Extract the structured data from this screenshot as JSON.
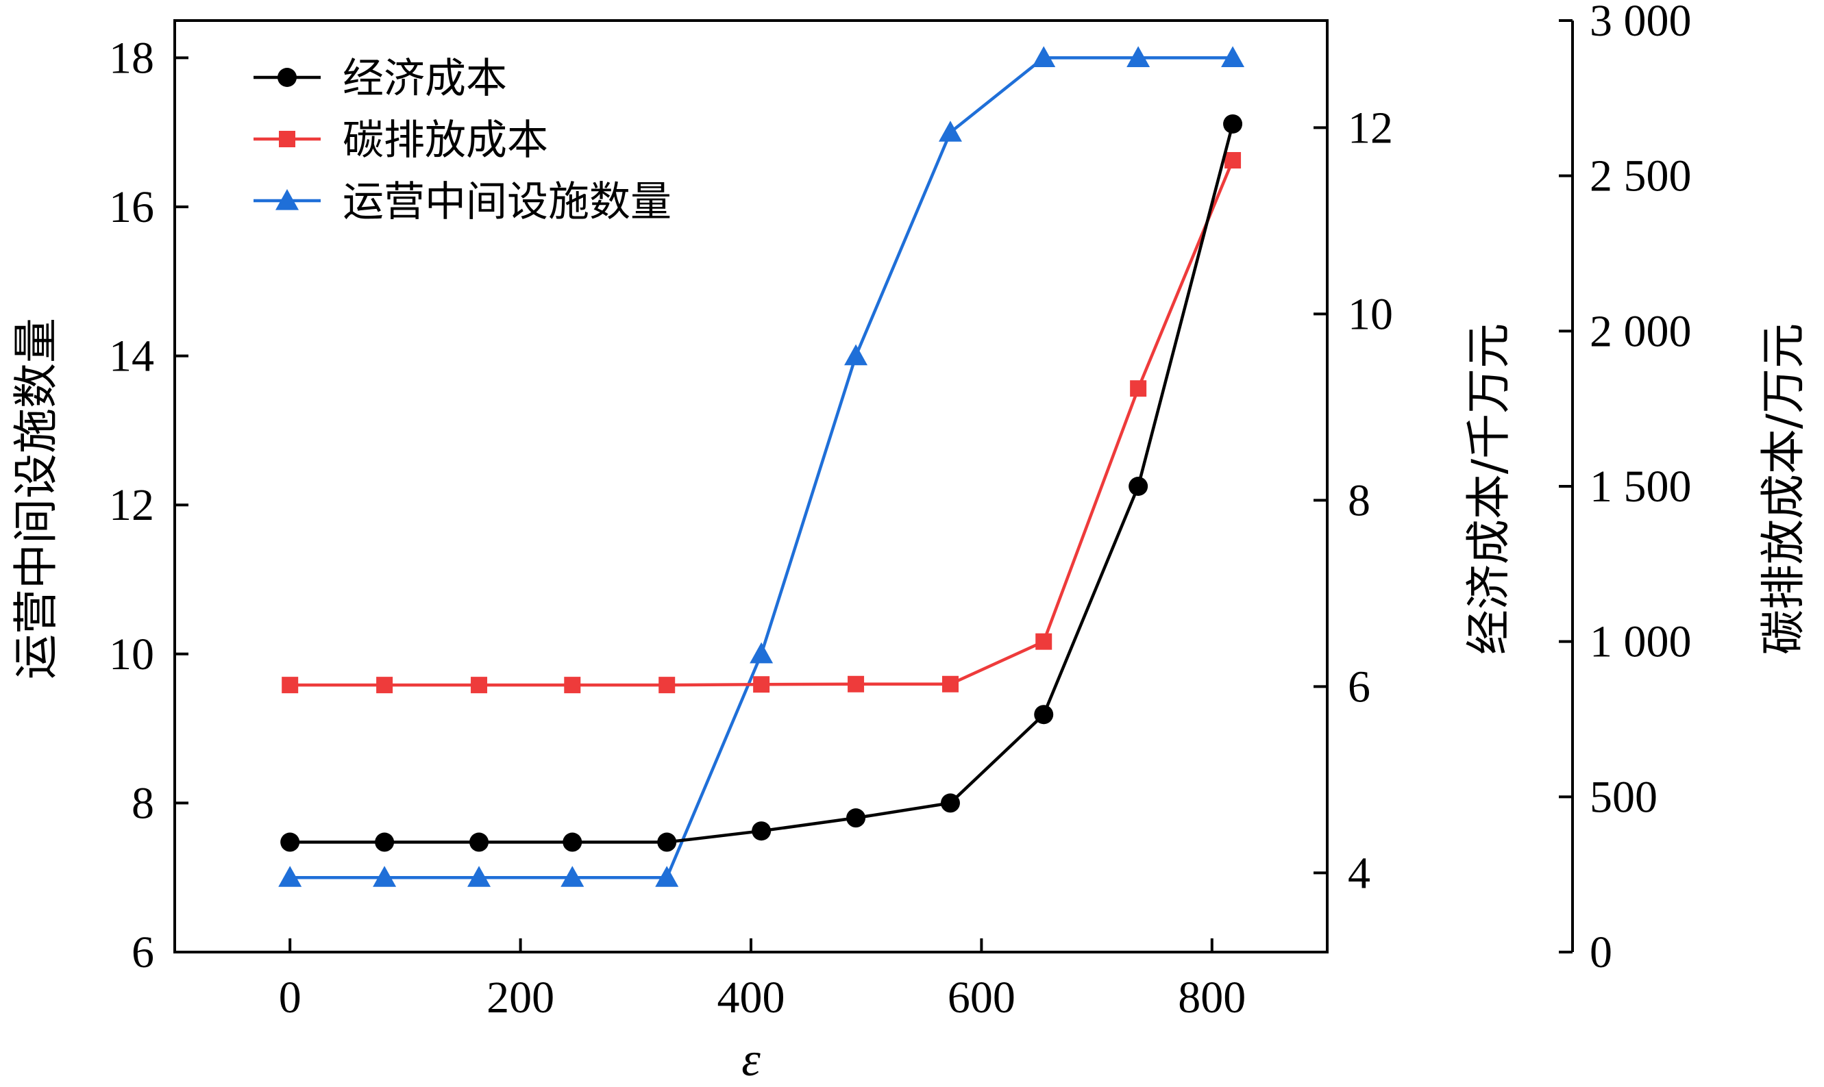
{
  "chart_data": {
    "type": "line",
    "x": [
      0,
      82,
      164,
      245,
      327,
      409,
      491,
      573,
      654,
      736,
      818
    ],
    "xlabel": "ε",
    "xlim": [
      -100,
      900
    ],
    "x_ticks": [
      0,
      200,
      400,
      600,
      800
    ],
    "axes": {
      "left": {
        "label": "运营中间设施数量",
        "lim": [
          6,
          18.5
        ],
        "ticks": [
          6,
          8,
          10,
          12,
          14,
          16,
          18
        ],
        "tick_labels": [
          "6",
          "8",
          "10",
          "12",
          "14",
          "16",
          "18"
        ]
      },
      "right1": {
        "label": "经济成本/千万元",
        "lim": [
          3.15,
          13.15
        ],
        "ticks": [
          4,
          6,
          8,
          10,
          12
        ],
        "tick_labels": [
          "4",
          "6",
          "8",
          "10",
          "12"
        ]
      },
      "right2": {
        "label": "碳排放成本/万元",
        "lim": [
          0,
          3000
        ],
        "ticks": [
          0,
          500,
          1000,
          1500,
          2000,
          2500,
          3000
        ],
        "tick_labels": [
          "0",
          "500",
          "1 000",
          "1 500",
          "2 000",
          "2 500",
          "3 000"
        ]
      }
    },
    "series": [
      {
        "name": "经济成本",
        "axis": "right1",
        "color": "#000000",
        "marker": "circle",
        "values": [
          4.33,
          4.33,
          4.33,
          4.33,
          4.33,
          4.45,
          4.59,
          4.75,
          5.7,
          8.15,
          12.04
        ]
      },
      {
        "name": "碳排放成本",
        "axis": "right2",
        "color": "#ee3b3b",
        "marker": "square",
        "values": [
          860,
          860,
          860,
          860,
          860,
          862,
          863,
          863,
          1000,
          1815,
          2550
        ]
      },
      {
        "name": "运营中间设施数量",
        "axis": "left",
        "color": "#1f6fd8",
        "marker": "triangle",
        "values": [
          7,
          7,
          7,
          7,
          7,
          10,
          14,
          17,
          18,
          18,
          18
        ]
      }
    ],
    "legend": {
      "position": "top-left"
    },
    "grid": false
  }
}
